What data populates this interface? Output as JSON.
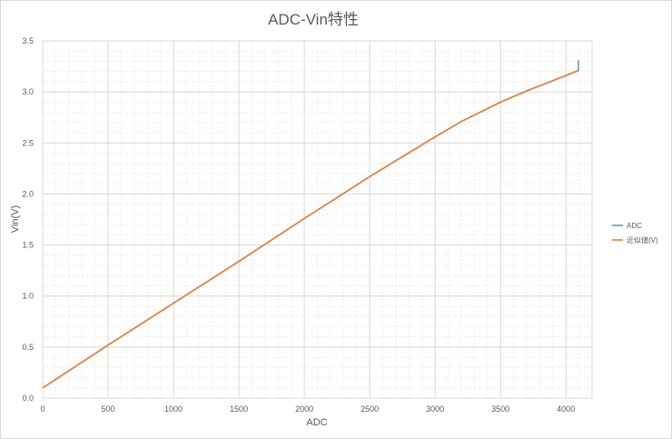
{
  "chart_data": {
    "type": "line",
    "title": "ADC-Vin特性",
    "xlabel": "ADC",
    "ylabel": "Vin(V)",
    "xlim": [
      0,
      4200
    ],
    "ylim": [
      0,
      3.5
    ],
    "x_ticks": [
      0,
      500,
      1000,
      1500,
      2000,
      2500,
      3000,
      3500,
      4000
    ],
    "y_ticks": [
      "0.0",
      "0.5",
      "1.0",
      "1.5",
      "2.0",
      "2.5",
      "3.0",
      "3.5"
    ],
    "grid": true,
    "legend_position": "right",
    "series": [
      {
        "name": "ADC",
        "color": "#5b9bd5",
        "x": [
          0,
          500,
          1000,
          1500,
          2000,
          2500,
          3000,
          3200,
          3500,
          3700,
          4000,
          4095,
          4095
        ],
        "y": [
          0.1,
          0.52,
          0.93,
          1.34,
          1.76,
          2.17,
          2.56,
          2.71,
          2.9,
          3.01,
          3.16,
          3.21,
          3.31
        ]
      },
      {
        "name": "近似値(V)",
        "color": "#ed7d31",
        "x": [
          0,
          500,
          1000,
          1500,
          2000,
          2500,
          3000,
          3200,
          3500,
          3700,
          4000,
          4095
        ],
        "y": [
          0.1,
          0.52,
          0.93,
          1.34,
          1.76,
          2.17,
          2.56,
          2.71,
          2.9,
          3.01,
          3.16,
          3.21
        ]
      }
    ]
  }
}
